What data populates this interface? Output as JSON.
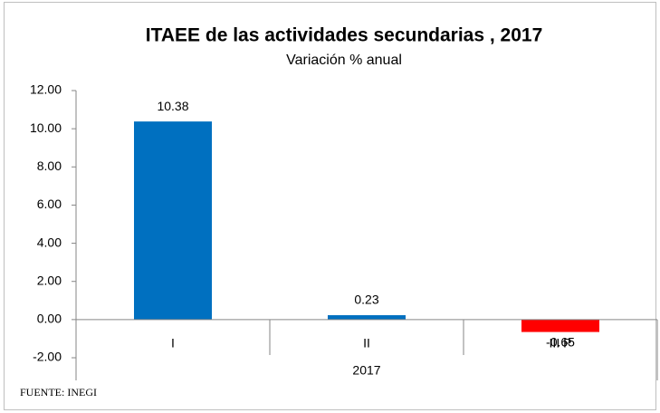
{
  "chart_data": {
    "type": "bar",
    "title": "ITAEE de las actividades secundarias , 2017",
    "subtitle": "Variación % anual",
    "categories": [
      "I",
      "II",
      "III P"
    ],
    "group_label": "2017",
    "values": [
      10.38,
      0.23,
      -0.65
    ],
    "colors": [
      "#0070c0",
      "#0070c0",
      "#ff0000"
    ],
    "ylim": [
      -2,
      12
    ],
    "yticks": [
      {
        "value": -2,
        "label": "-2.00"
      },
      {
        "value": 0,
        "label": "0.00"
      },
      {
        "value": 2,
        "label": "2.00"
      },
      {
        "value": 4,
        "label": "4.00"
      },
      {
        "value": 6,
        "label": "6.00"
      },
      {
        "value": 8,
        "label": "8.00"
      },
      {
        "value": 10,
        "label": "10.00"
      },
      {
        "value": 12,
        "label": "12.00"
      }
    ],
    "source": "FUENTE: INEGI"
  }
}
